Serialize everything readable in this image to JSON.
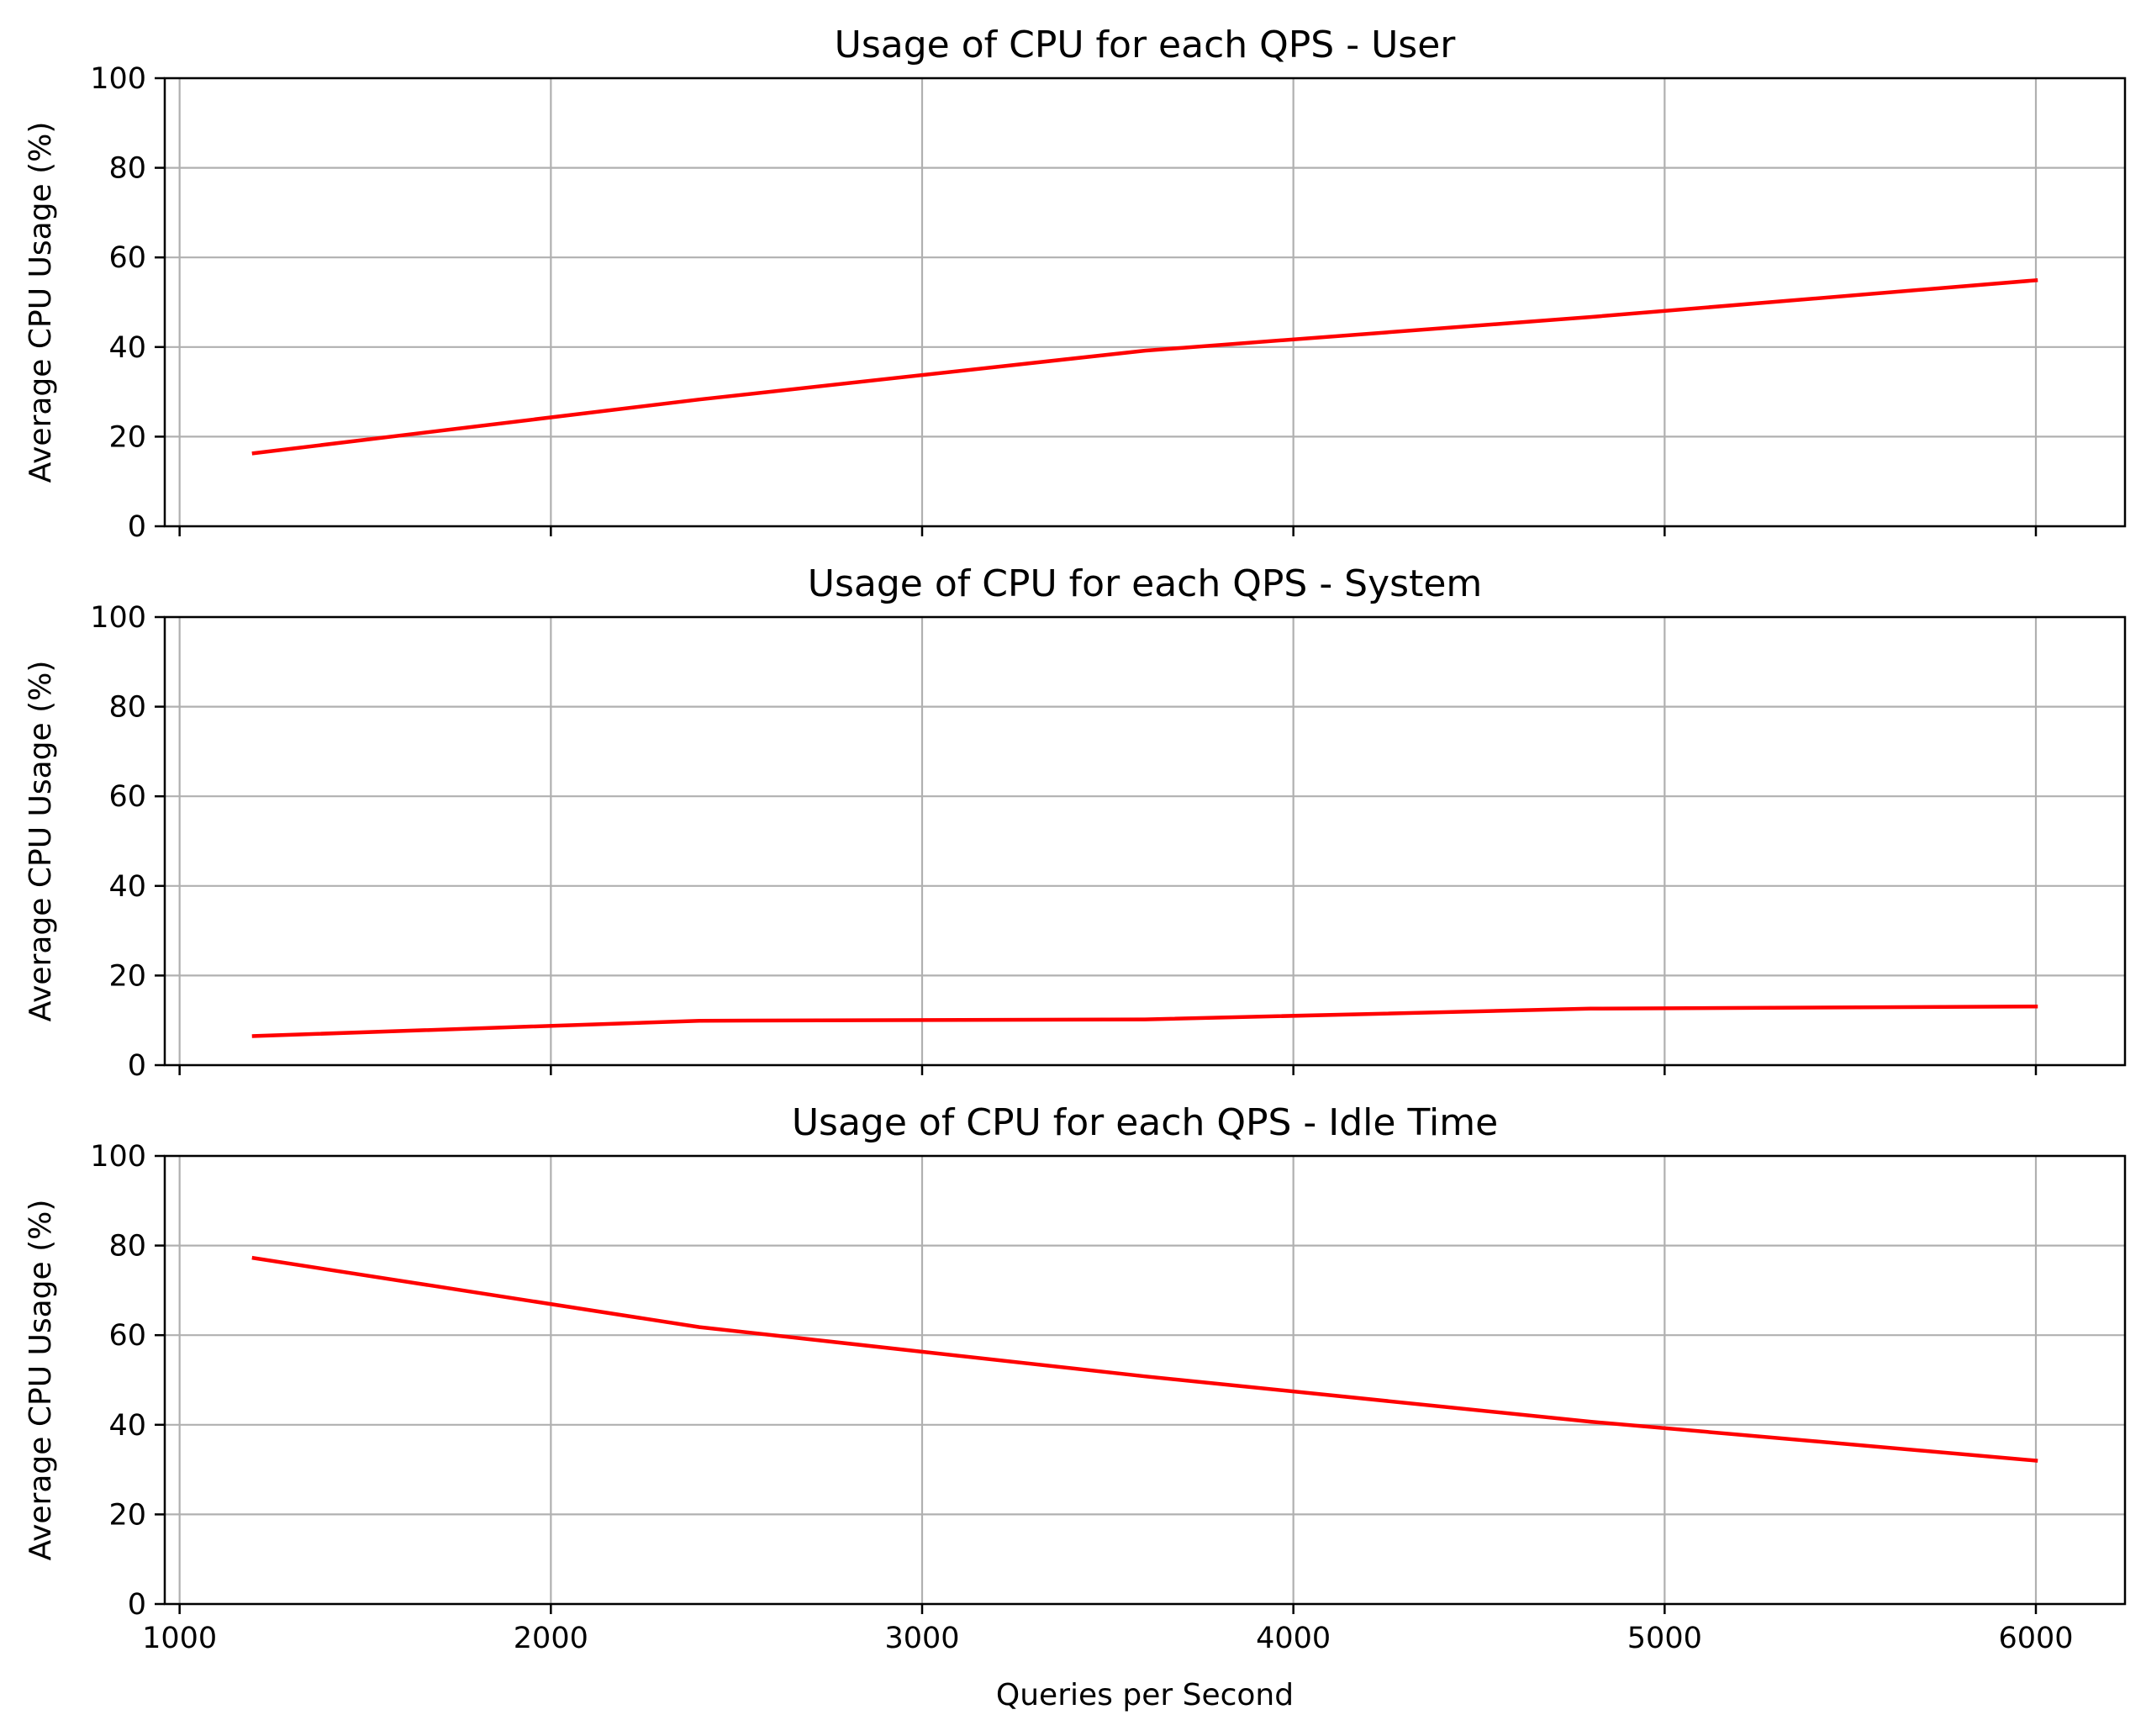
{
  "figure": {
    "xlabel": "Queries per Second",
    "line_color": "#ff0000",
    "grid_color": "#b0b0b0"
  },
  "chart_data": [
    {
      "type": "line",
      "title": "Usage of CPU for each QPS - User",
      "xlabel": "",
      "ylabel": "Average CPU Usage (%)",
      "xlim": [
        960,
        6240
      ],
      "ylim": [
        0,
        100
      ],
      "xticks": [
        1000,
        2000,
        3000,
        4000,
        5000,
        6000
      ],
      "yticks": [
        0,
        20,
        40,
        60,
        80,
        100
      ],
      "grid": true,
      "series": [
        {
          "x": [
            1200,
            2400,
            3600,
            4800,
            6000
          ],
          "y": [
            16.3,
            28.3,
            39.2,
            46.7,
            54.9
          ]
        }
      ]
    },
    {
      "type": "line",
      "title": "Usage of CPU for each QPS - System",
      "xlabel": "",
      "ylabel": "Average CPU Usage (%)",
      "xlim": [
        960,
        6240
      ],
      "ylim": [
        0,
        100
      ],
      "xticks": [
        1000,
        2000,
        3000,
        4000,
        5000,
        6000
      ],
      "yticks": [
        0,
        20,
        40,
        60,
        80,
        100
      ],
      "grid": true,
      "series": [
        {
          "x": [
            1200,
            2400,
            3600,
            4800,
            6000
          ],
          "y": [
            6.5,
            9.9,
            10.2,
            12.6,
            13.1
          ]
        }
      ]
    },
    {
      "type": "line",
      "title": "Usage of CPU for each QPS - Idle Time",
      "xlabel": "Queries per Second",
      "ylabel": "Average CPU Usage (%)",
      "xlim": [
        960,
        6240
      ],
      "ylim": [
        0,
        100
      ],
      "xticks": [
        1000,
        2000,
        3000,
        4000,
        5000,
        6000
      ],
      "yticks": [
        0,
        20,
        40,
        60,
        80,
        100
      ],
      "grid": true,
      "series": [
        {
          "x": [
            1200,
            2400,
            3600,
            4800,
            6000
          ],
          "y": [
            77.2,
            61.8,
            50.8,
            40.7,
            32.0
          ]
        }
      ]
    }
  ]
}
